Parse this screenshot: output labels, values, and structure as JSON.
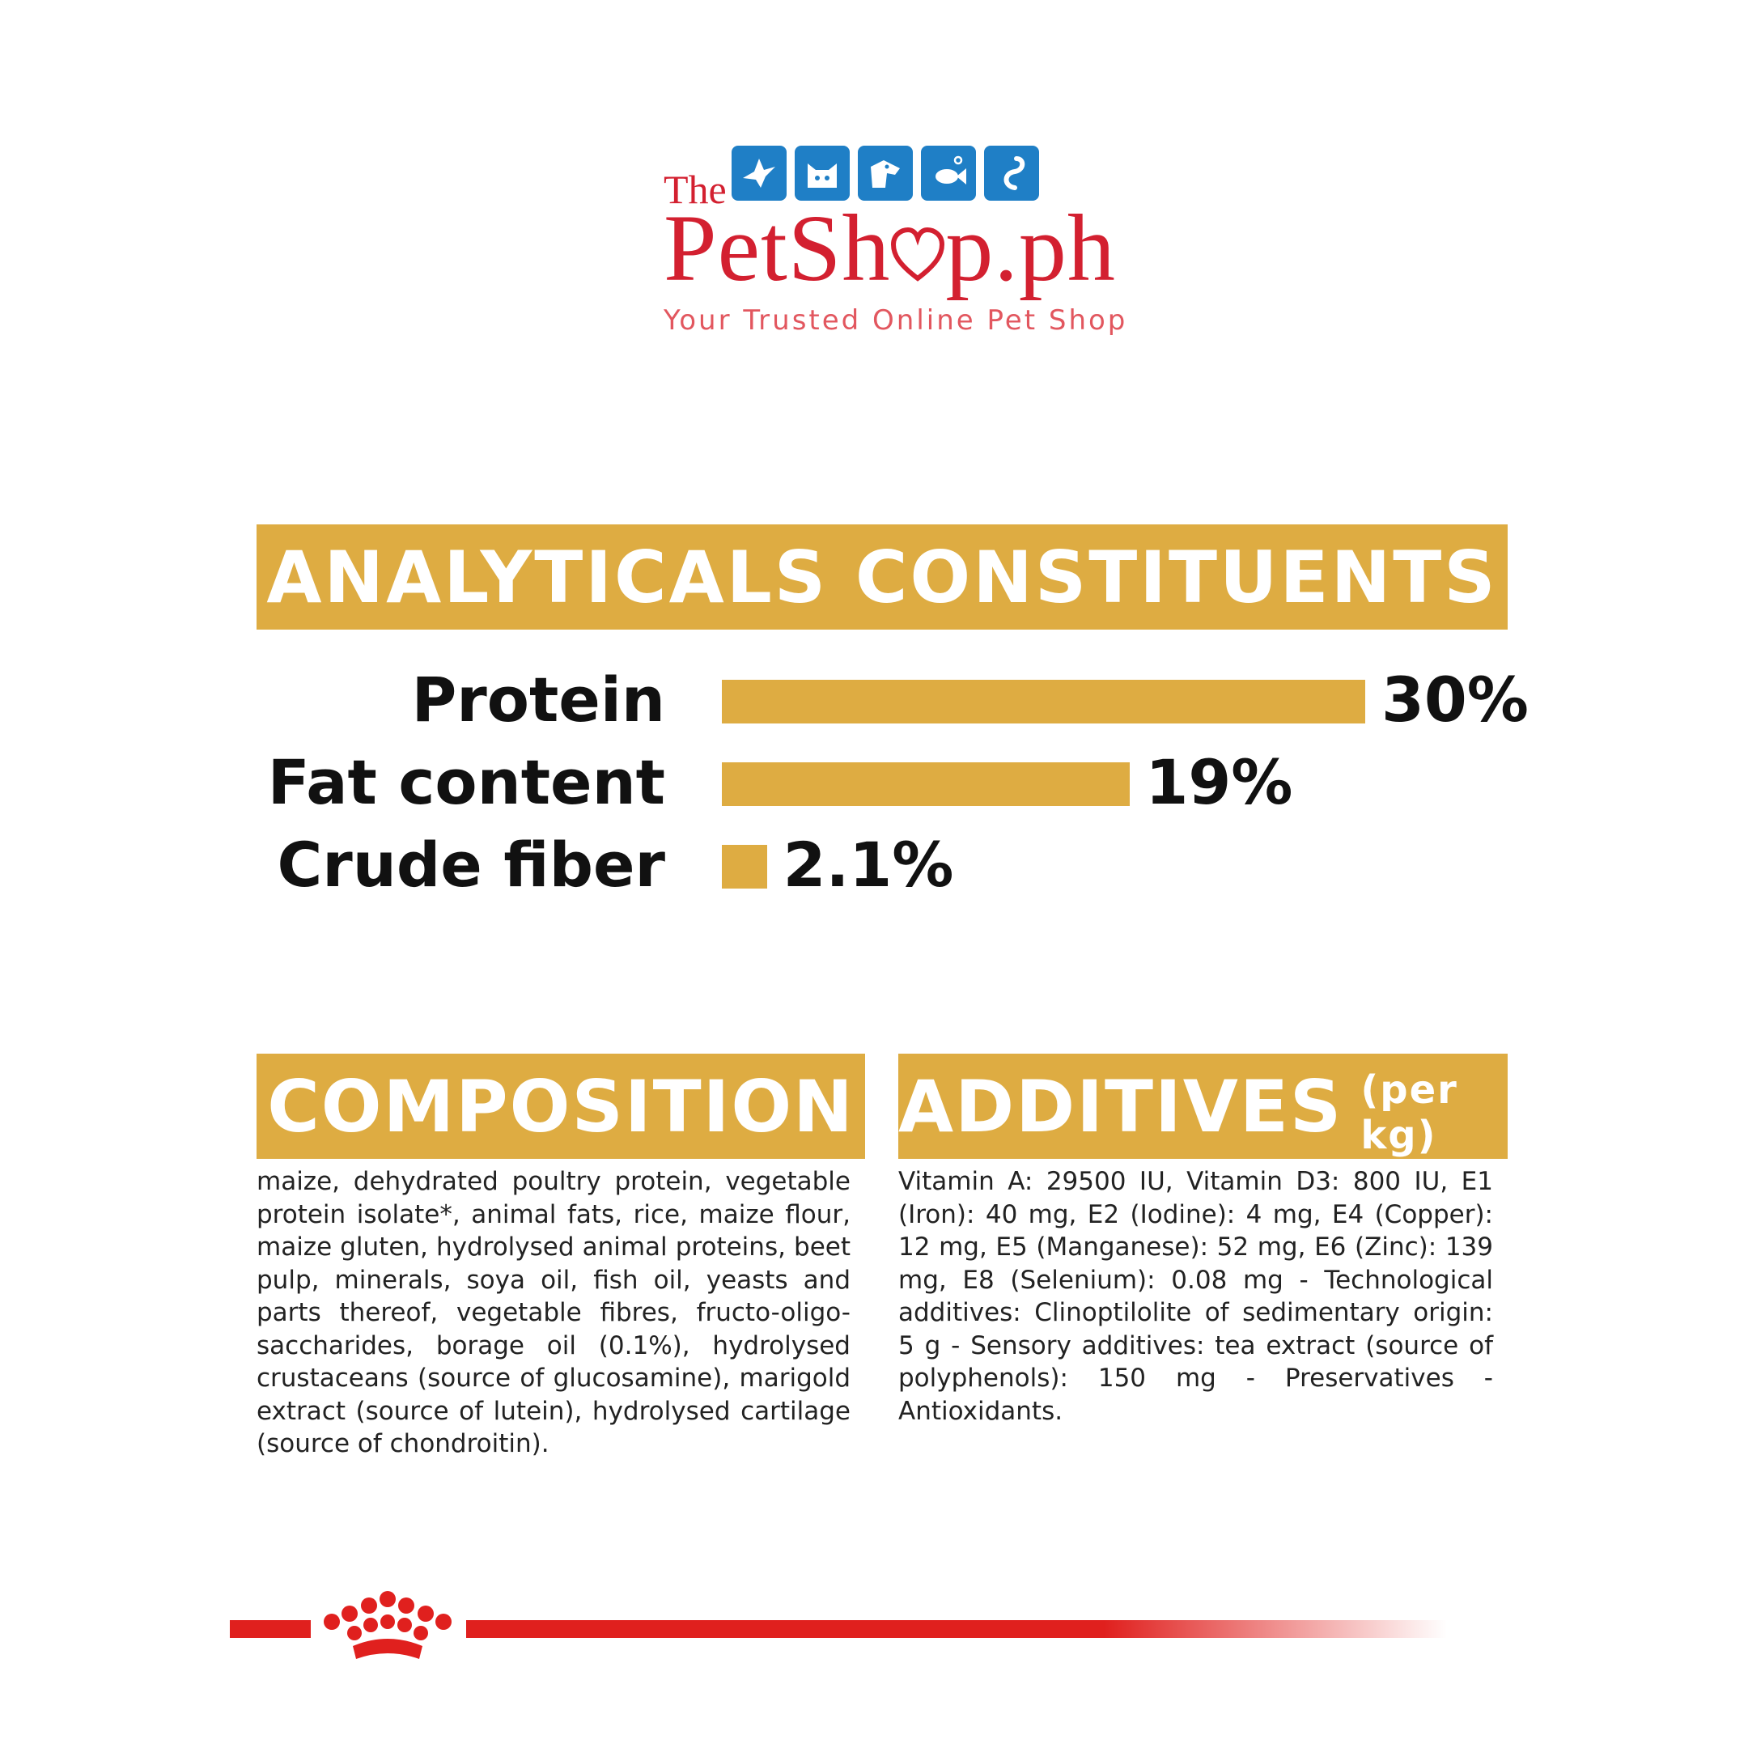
{
  "logo": {
    "the": "The",
    "name_part1": "PetSh",
    "name_part2": "p.ph",
    "tagline": "Your Trusted Online Pet Shop",
    "icons": [
      "bird-icon",
      "cat-icon",
      "dog-icon",
      "fish-icon",
      "snake-icon"
    ],
    "icon_color": "#1f7fc6",
    "brand_color": "#d32030"
  },
  "analytical": {
    "title": "ANALYTICALS CONSTITUENTS"
  },
  "chart_data": {
    "type": "bar",
    "orientation": "horizontal",
    "categories": [
      "Protein",
      "Fat content",
      "Crude fiber"
    ],
    "values": [
      30,
      19,
      2.1
    ],
    "value_labels": [
      "30%",
      "19%",
      "2.1%"
    ],
    "unit": "%",
    "bar_color": "#deac42",
    "grid": false
  },
  "composition": {
    "title": "COMPOSITION",
    "text": "maize, dehydrated poultry protein, vegetable protein isolate*, animal fats, rice, maize flour, maize gluten, hydrolysed animal proteins, beet pulp, minerals, soya oil, fish oil, yeasts and parts thereof, vegetable fibres, fructo-oligo-saccharides, borage oil (0.1%), hydrolysed crustaceans (source of glucosamine), marigold extract (source of lutein), hydrolysed cartilage (source of chondroitin)."
  },
  "additives": {
    "title": "ADDITIVES",
    "subtitle": "(per kg)",
    "text": "Vitamin A: 29500 IU, Vitamin D3: 800 IU, E1 (Iron): 40 mg, E2 (Iodine): 4 mg, E4 (Copper): 12 mg, E5 (Manganese): 52 mg, E6 (Zinc): 139 mg, E8 (Selenium): 0.08 mg - Technological additives: Clinoptilolite of sedimentary origin: 5 g - Sensory additives: tea extract (source of polyphenols): 150 mg - Preservatives - Antioxidants."
  },
  "footer": {
    "emblem": "crown-icon",
    "line_color": "#e0201e"
  }
}
